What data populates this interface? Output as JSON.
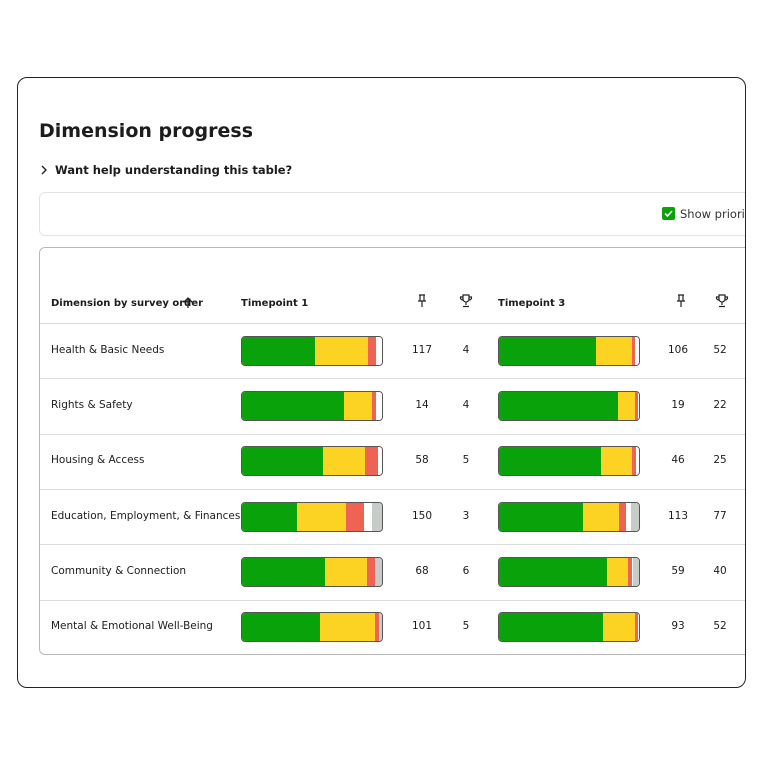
{
  "title": "Dimension progress",
  "help": "Want help understanding this table?",
  "filter": {
    "label": "Show priorities"
  },
  "table": {
    "headers": [
      "Dimension by survey order",
      "Timepoint 1",
      "Timepoint 3"
    ],
    "segment_colors": [
      "#0aa20a",
      "#fcd223",
      "#ef6354",
      "#ffffff",
      "#c8ccc9"
    ],
    "rows": [
      {
        "dimension": "Health & Basic Needs",
        "t1": {
          "segments": [
            52,
            38,
            6,
            4,
            0
          ],
          "pinned": 117,
          "trophies": 4
        },
        "t3": {
          "segments": [
            69,
            26,
            2,
            3,
            0
          ],
          "pinned": 106,
          "trophies": 52
        }
      },
      {
        "dimension": "Rights & Safety",
        "t1": {
          "segments": [
            73,
            20,
            3,
            4,
            0
          ],
          "pinned": 14,
          "trophies": 4
        },
        "t3": {
          "segments": [
            85,
            12,
            2,
            1,
            0
          ],
          "pinned": 19,
          "trophies": 22
        }
      },
      {
        "dimension": "Housing & Access",
        "t1": {
          "segments": [
            58,
            30,
            9,
            3,
            0
          ],
          "pinned": 58,
          "trophies": 5
        },
        "t3": {
          "segments": [
            73,
            22,
            3,
            2,
            0
          ],
          "pinned": 46,
          "trophies": 25
        }
      },
      {
        "dimension": "Education, Employment, & Finances",
        "t1": {
          "segments": [
            39,
            35,
            13,
            6,
            7
          ],
          "pinned": 150,
          "trophies": 3
        },
        "t3": {
          "segments": [
            60,
            26,
            5,
            3,
            6
          ],
          "pinned": 113,
          "trophies": 77
        }
      },
      {
        "dimension": "Community & Connection",
        "t1": {
          "segments": [
            59,
            30,
            6,
            0,
            5
          ],
          "pinned": 68,
          "trophies": 6
        },
        "t3": {
          "segments": [
            77,
            15,
            3,
            1,
            4
          ],
          "pinned": 59,
          "trophies": 40
        }
      },
      {
        "dimension": "Mental & Emotional Well-Being",
        "t1": {
          "segments": [
            56,
            39,
            3,
            0,
            2
          ],
          "pinned": 101,
          "trophies": 5
        },
        "t3": {
          "segments": [
            74,
            23,
            2,
            1,
            0
          ],
          "pinned": 93,
          "trophies": 52
        }
      }
    ]
  }
}
